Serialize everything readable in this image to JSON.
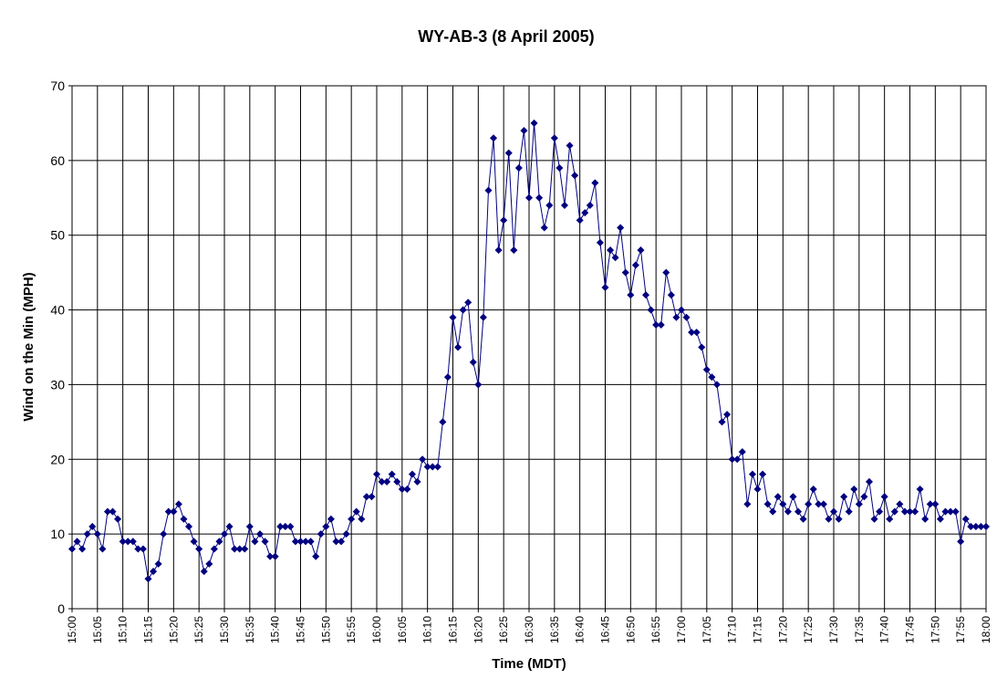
{
  "chart_data": {
    "type": "line",
    "title": "WY-AB-3 (8 April 2005)",
    "xlabel": "Time (MDT)",
    "ylabel": "Wind on the Min (MPH)",
    "ylim": [
      0,
      70
    ],
    "yticks": [
      0,
      10,
      20,
      30,
      40,
      50,
      60,
      70
    ],
    "xtick_labels": [
      "15:00",
      "15:05",
      "15:10",
      "15:15",
      "15:20",
      "15:25",
      "15:30",
      "15:35",
      "15:40",
      "15:45",
      "15:50",
      "15:55",
      "16:00",
      "16:05",
      "16:10",
      "16:15",
      "16:20",
      "16:25",
      "16:30",
      "16:35",
      "16:40",
      "16:45",
      "16:50",
      "16:55",
      "17:00",
      "17:05",
      "17:10",
      "17:15",
      "17:20",
      "17:25",
      "17:30",
      "17:35",
      "17:40",
      "17:45",
      "17:50",
      "17:55",
      "18:00"
    ],
    "grid": true,
    "legend": "none",
    "marker": "diamond",
    "color": "#000080",
    "x_start": "15:00",
    "x_interval_minutes": 1,
    "values": [
      8,
      9,
      8,
      10,
      11,
      10,
      8,
      13,
      13,
      12,
      9,
      9,
      9,
      8,
      8,
      4,
      5,
      6,
      10,
      13,
      13,
      14,
      12,
      11,
      9,
      8,
      5,
      6,
      8,
      9,
      10,
      11,
      8,
      8,
      8,
      11,
      9,
      10,
      9,
      7,
      7,
      11,
      11,
      11,
      9,
      9,
      9,
      9,
      7,
      10,
      11,
      12,
      9,
      9,
      10,
      12,
      13,
      12,
      15,
      15,
      18,
      17,
      17,
      18,
      17,
      16,
      16,
      18,
      17,
      20,
      19,
      19,
      19,
      25,
      31,
      39,
      35,
      40,
      41,
      33,
      30,
      39,
      56,
      63,
      48,
      52,
      61,
      48,
      59,
      64,
      55,
      65,
      55,
      51,
      54,
      63,
      59,
      54,
      62,
      58,
      52,
      53,
      54,
      57,
      49,
      43,
      48,
      47,
      51,
      45,
      42,
      46,
      48,
      42,
      40,
      38,
      38,
      45,
      42,
      39,
      40,
      39,
      37,
      37,
      35,
      32,
      31,
      30,
      25,
      26,
      20,
      20,
      21,
      14,
      18,
      16,
      18,
      14,
      13,
      15,
      14,
      13,
      15,
      13,
      12,
      14,
      16,
      14,
      14,
      12,
      13,
      12,
      15,
      13,
      16,
      14,
      15,
      17,
      12,
      13,
      15,
      12,
      13,
      14,
      13,
      13,
      13,
      16,
      12,
      14,
      14,
      12,
      13,
      13,
      13,
      9,
      12,
      11,
      11,
      11,
      11
    ]
  }
}
